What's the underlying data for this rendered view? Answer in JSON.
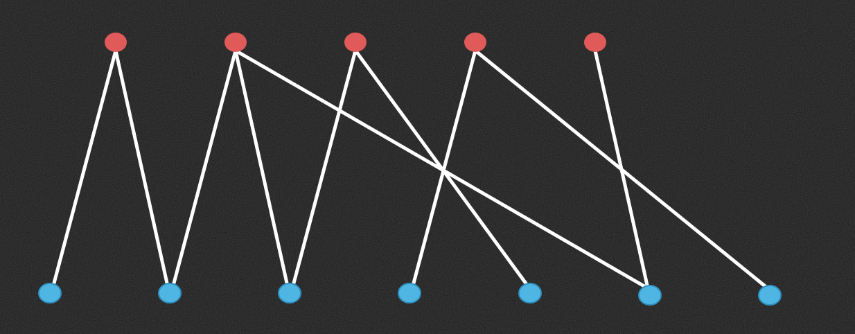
{
  "graph": {
    "type": "bipartite",
    "colors": {
      "background": "#151515",
      "edge": "#ffffff",
      "top_node": "#e05a5a",
      "bottom_node": "#4fb6e3",
      "bottom_node_stroke": "#2f8fbf"
    },
    "top_nodes": [
      "t1",
      "t2",
      "t3",
      "t4",
      "t5"
    ],
    "bottom_nodes": [
      "b1",
      "b2",
      "b3",
      "b4",
      "b5",
      "b6",
      "b7"
    ],
    "edges": [
      [
        "t1",
        "b1"
      ],
      [
        "t1",
        "b2"
      ],
      [
        "t2",
        "b2"
      ],
      [
        "t2",
        "b3"
      ],
      [
        "t2",
        "b6"
      ],
      [
        "t3",
        "b3"
      ],
      [
        "t3",
        "b5"
      ],
      [
        "t4",
        "b4"
      ],
      [
        "t4",
        "b7"
      ],
      [
        "t5",
        "b6"
      ]
    ]
  }
}
